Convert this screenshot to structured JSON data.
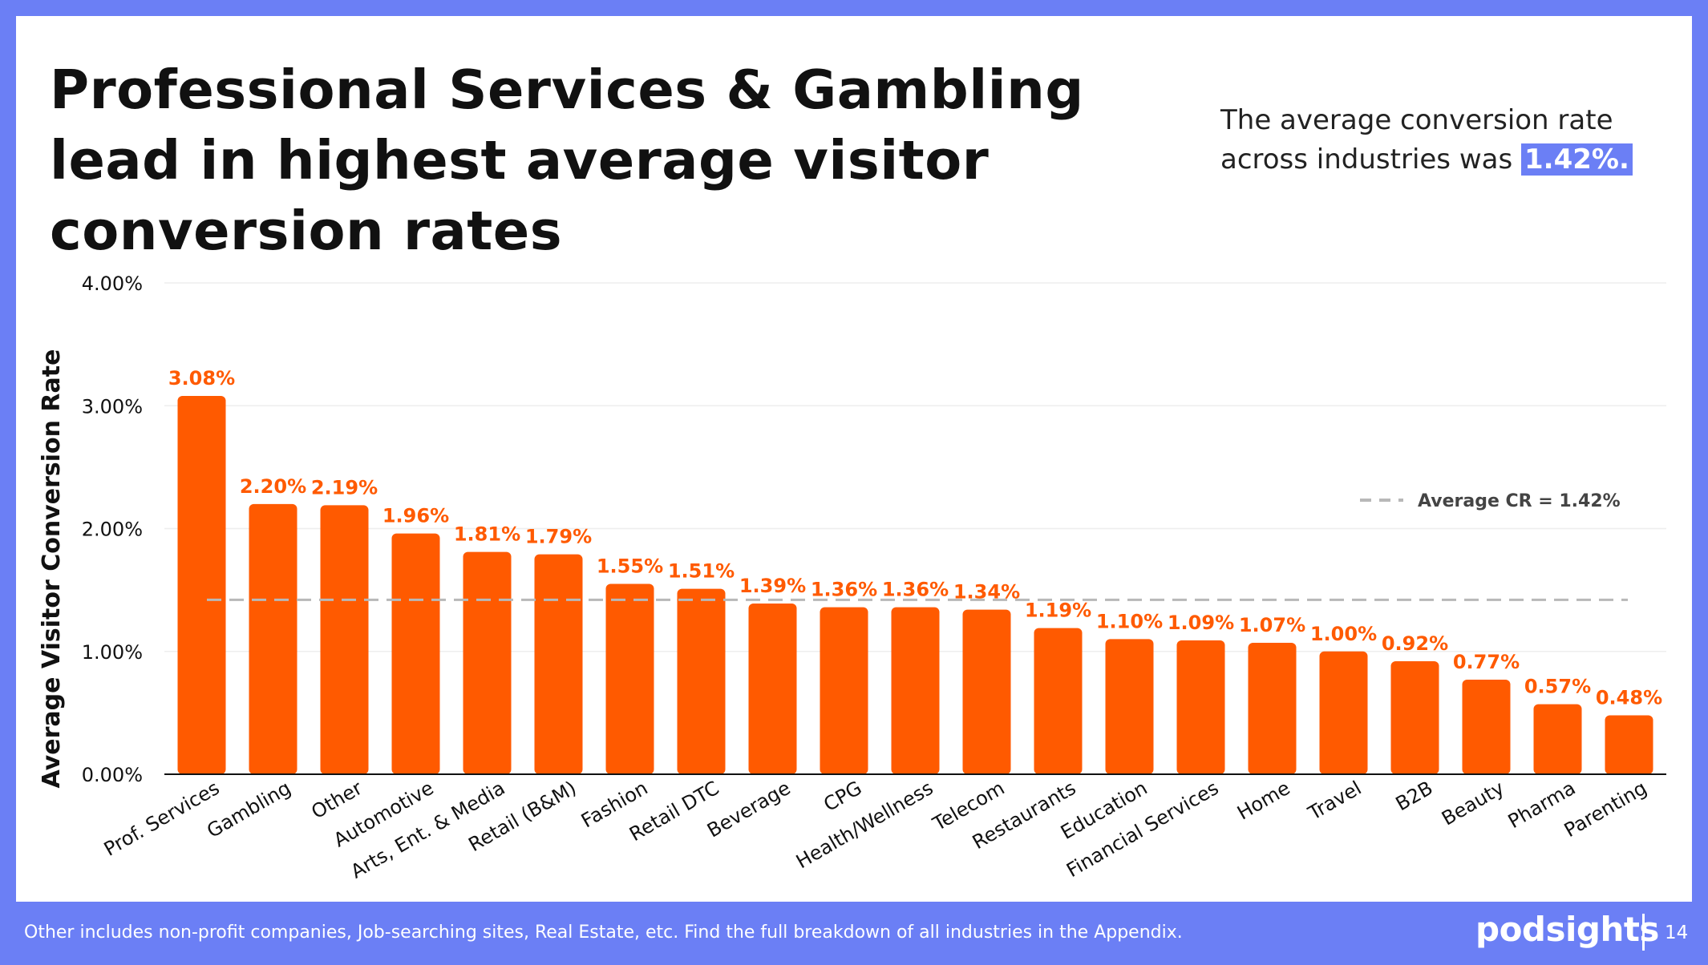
{
  "slide": {
    "headline": "Professional Services & Gambling lead in highest average visitor conversion rates",
    "callout_text": "The average conversion rate across industries was",
    "callout_value": "1.42%.",
    "footer_note": "Other includes non-profit companies, Job-searching sites, Real Estate, etc. Find the full breakdown of all industries in the Appendix.",
    "brand": "podsights",
    "page_number": "14"
  },
  "colors": {
    "bar": "#ff5a00",
    "bar_label": "#ff5a00",
    "frame": "#6b7ff5",
    "average_line": "#b8b8b8"
  },
  "chart_data": {
    "type": "bar",
    "ylabel": "Average Visitor Conversion Rate",
    "xlabel": "",
    "ylim": [
      0,
      4
    ],
    "y_ticks": [
      "0.00%",
      "1.00%",
      "2.00%",
      "3.00%",
      "4.00%"
    ],
    "grid": true,
    "categories": [
      "Prof. Services",
      "Gambling",
      "Other",
      "Automotive",
      "Arts, Ent. & Media",
      "Retail (B&M)",
      "Fashion",
      "Retail DTC",
      "Beverage",
      "CPG",
      "Health/Wellness",
      "Telecom",
      "Restaurants",
      "Education",
      "Financial Services",
      "Home",
      "Travel",
      "B2B",
      "Beauty",
      "Pharma",
      "Parenting"
    ],
    "values": [
      3.08,
      2.2,
      2.19,
      1.96,
      1.81,
      1.79,
      1.55,
      1.51,
      1.39,
      1.36,
      1.36,
      1.34,
      1.19,
      1.1,
      1.09,
      1.07,
      1.0,
      0.92,
      0.77,
      0.57,
      0.48
    ],
    "labels": [
      "3.08%",
      "2.20%",
      "2.19%",
      "1.96%",
      "1.81%",
      "1.79%",
      "1.55%",
      "1.51%",
      "1.39%",
      "1.36%",
      "1.36%",
      "1.34%",
      "1.19%",
      "1.10%",
      "1.09%",
      "1.07%",
      "1.00%",
      "0.92%",
      "0.77%",
      "0.57%",
      "0.48%"
    ],
    "reference_line": {
      "value": 1.42,
      "label": "Average CR = 1.42%",
      "style": "dashed"
    },
    "legend_position": "top-right"
  }
}
